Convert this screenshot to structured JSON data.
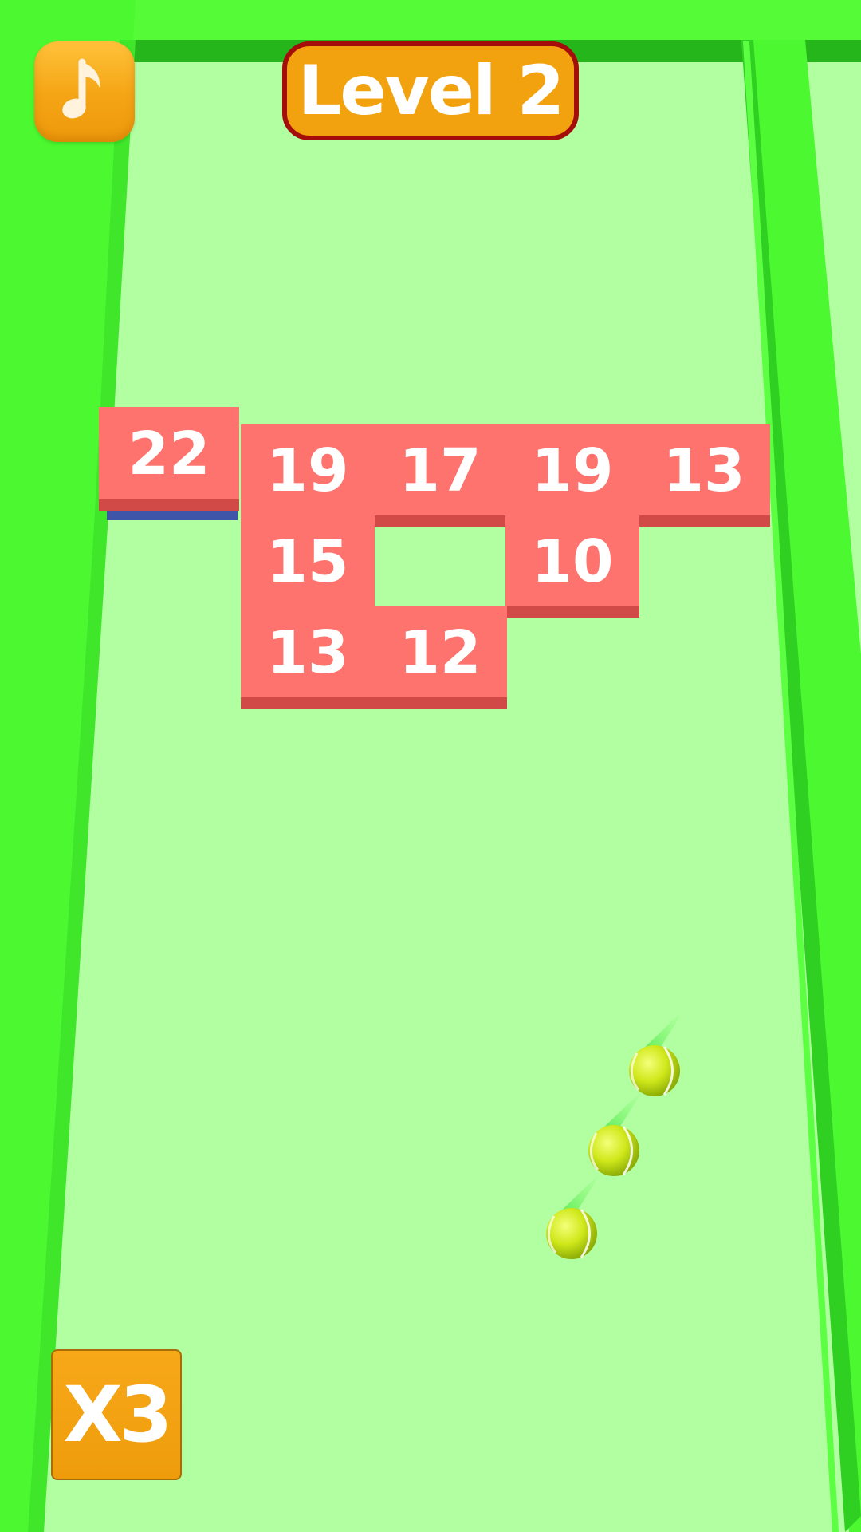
{
  "hud": {
    "level_label": "Level 2",
    "multiplier_label": "X3",
    "music_icon": "music-note-icon"
  },
  "bricks": [
    {
      "value": "22",
      "row": 0,
      "col": 0,
      "raised": true
    },
    {
      "value": "19",
      "row": 0,
      "col": 1
    },
    {
      "value": "17",
      "row": 0,
      "col": 2
    },
    {
      "value": "19",
      "row": 0,
      "col": 3
    },
    {
      "value": "13",
      "row": 0,
      "col": 4
    },
    {
      "value": "15",
      "row": 1,
      "col": 1
    },
    {
      "value": "10",
      "row": 1,
      "col": 3
    },
    {
      "value": "13",
      "row": 2,
      "col": 1
    },
    {
      "value": "12",
      "row": 2,
      "col": 2
    }
  ],
  "balls": [
    {
      "id": "ball-1"
    },
    {
      "id": "ball-2"
    },
    {
      "id": "ball-3"
    }
  ],
  "colors": {
    "floor": "#b2ffa2",
    "wall": "#4cf830",
    "wall_dark": "#22b01a",
    "brick": "#ff736e",
    "brick_side": "#d24a48",
    "button_orange": "#f2a20f",
    "badge_border": "#a50d0a",
    "ball": "#d8ee20"
  }
}
